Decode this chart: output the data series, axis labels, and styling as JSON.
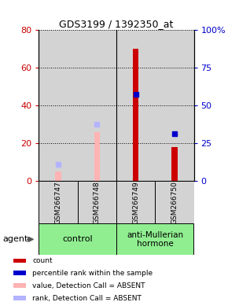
{
  "title": "GDS3199 / 1392350_at",
  "samples": [
    "GSM266747",
    "GSM266748",
    "GSM266749",
    "GSM266750"
  ],
  "control_color": "#90ee90",
  "amh_color": "#90ee90",
  "bar_bg_color": "#d3d3d3",
  "ylim_left": [
    0,
    80
  ],
  "ylim_right": [
    0,
    100
  ],
  "yticks_left": [
    0,
    20,
    40,
    60,
    80
  ],
  "yticks_right": [
    0,
    25,
    50,
    75,
    100
  ],
  "ytick_labels_right": [
    "0",
    "25",
    "50",
    "75",
    "100%"
  ],
  "count_values": [
    null,
    null,
    70,
    18
  ],
  "count_color": "#cc0000",
  "percentile_values": [
    null,
    null,
    46,
    25
  ],
  "percentile_color": "#0000cc",
  "value_absent": [
    5,
    26,
    null,
    null
  ],
  "value_absent_color": "#ffb3b3",
  "rank_absent": [
    9,
    30,
    null,
    null
  ],
  "rank_absent_color": "#b3b3ff",
  "legend_items": [
    {
      "label": "count",
      "color": "#cc0000"
    },
    {
      "label": "percentile rank within the sample",
      "color": "#0000cc"
    },
    {
      "label": "value, Detection Call = ABSENT",
      "color": "#ffb3b3"
    },
    {
      "label": "rank, Detection Call = ABSENT",
      "color": "#b3b3ff"
    }
  ],
  "agent_label": "agent",
  "fig_width": 2.9,
  "fig_height": 3.84,
  "dpi": 100
}
